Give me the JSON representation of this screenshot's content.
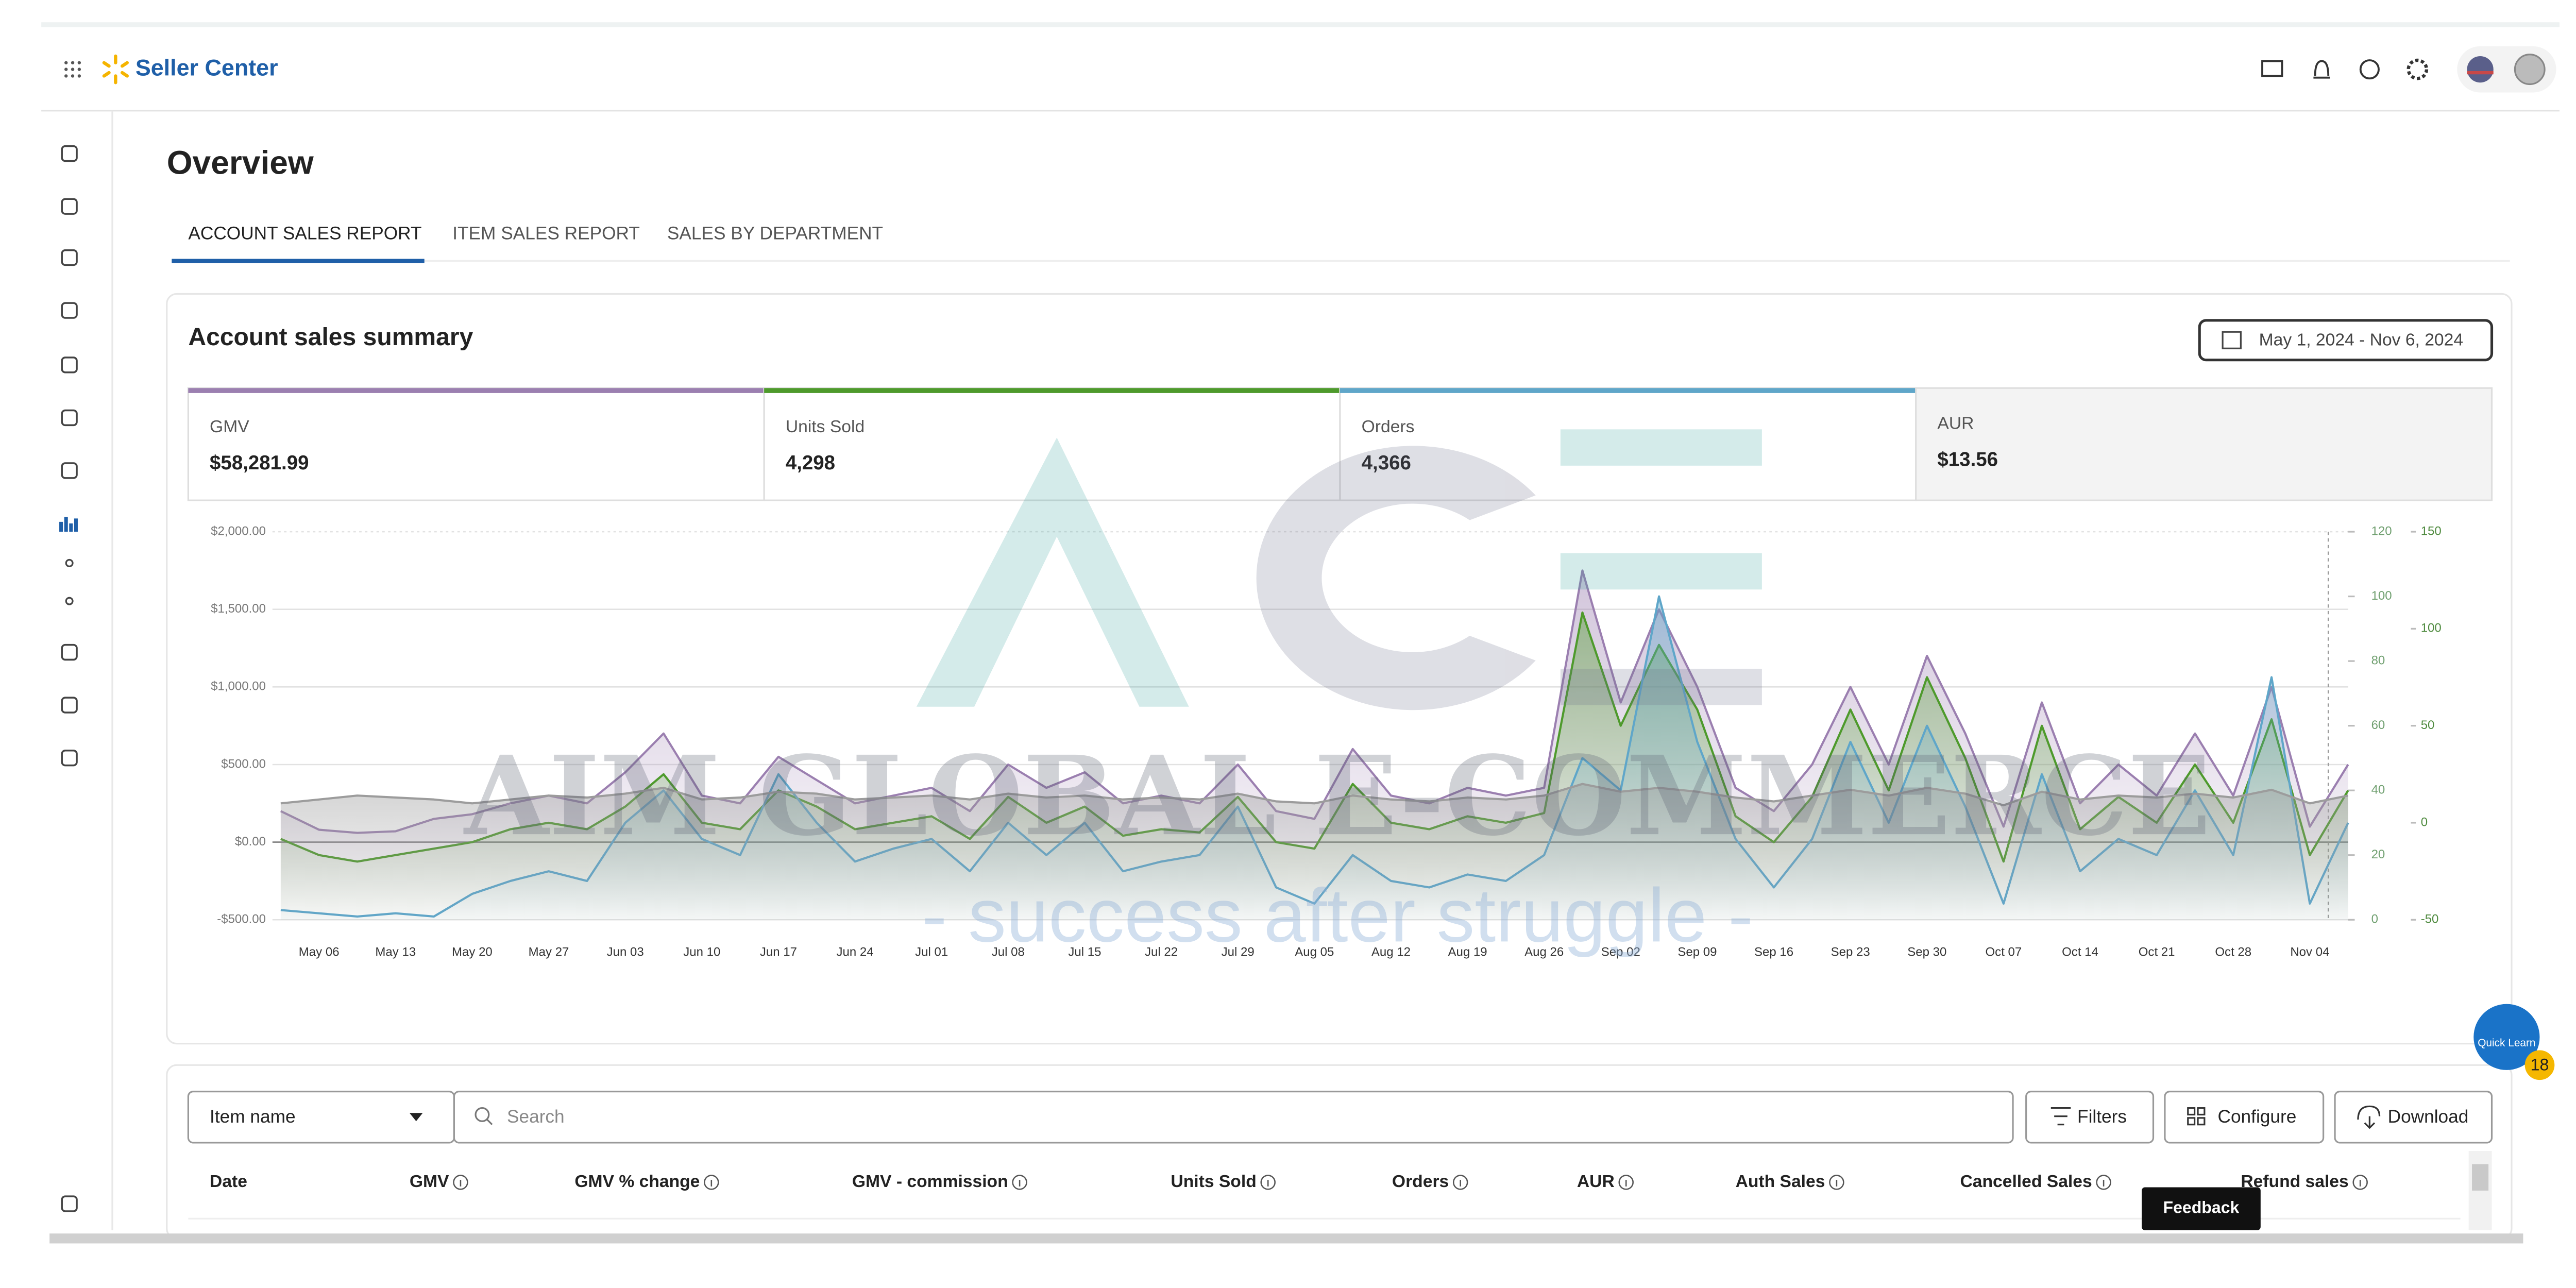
{
  "header": {
    "brand": "Seller Center"
  },
  "page": {
    "title": "Overview",
    "tabs": [
      "ACCOUNT SALES REPORT",
      "ITEM SALES REPORT",
      "SALES BY DEPARTMENT"
    ]
  },
  "summary": {
    "title": "Account sales summary",
    "date_range": "May 1, 2024 - Nov 6, 2024"
  },
  "chart_data": {
    "type": "line",
    "grid": true,
    "categories": [
      null,
      "May 06",
      null,
      "May 13",
      null,
      "May 20",
      null,
      "May 27",
      null,
      "Jun 03",
      null,
      "Jun 10",
      null,
      "Jun 17",
      null,
      "Jun 24",
      null,
      "Jul 01",
      null,
      "Jul 08",
      null,
      "Jul 15",
      null,
      "Jul 22",
      null,
      "Jul 29",
      null,
      "Aug 05",
      null,
      "Aug 12",
      null,
      "Aug 19",
      null,
      "Aug 26",
      null,
      "Sep 02",
      null,
      "Sep 09",
      null,
      "Sep 16",
      null,
      "Sep 23",
      null,
      "Sep 30",
      null,
      "Oct 07",
      null,
      "Oct 14",
      null,
      "Oct 21",
      null,
      "Oct 28",
      null,
      "Nov 04",
      null
    ],
    "ylim": [
      -500,
      2000
    ],
    "yticks": [
      {
        "value": -500,
        "label": "-$500.00"
      },
      {
        "value": 0,
        "label": "$0.00"
      },
      {
        "value": 500,
        "label": "$500.00"
      },
      {
        "value": 1000,
        "label": "$1,000.00"
      },
      {
        "value": 1500,
        "label": "$1,500.00"
      },
      {
        "value": 2000,
        "label": "$2,000.00"
      }
    ],
    "y2lim": [
      0,
      120
    ],
    "y2ticks": [
      0,
      20,
      40,
      60,
      80,
      100,
      120
    ],
    "y3lim": [
      -50,
      150
    ],
    "y3ticks": [
      -50,
      0,
      50,
      100,
      150
    ],
    "series": [
      {
        "name": "GMV",
        "summary_value": "$58,281.99",
        "selected": true,
        "color": "#9b7fb0",
        "axis": "y",
        "values": [
          200,
          80,
          60,
          70,
          150,
          180,
          250,
          300,
          250,
          450,
          700,
          300,
          250,
          550,
          400,
          250,
          300,
          350,
          200,
          500,
          350,
          450,
          250,
          300,
          250,
          500,
          200,
          150,
          600,
          300,
          250,
          350,
          300,
          350,
          1750,
          900,
          1500,
          1000,
          350,
          200,
          500,
          1000,
          500,
          1200,
          700,
          100,
          900,
          250,
          500,
          300,
          700,
          300,
          1000,
          100,
          500
        ]
      },
      {
        "name": "Units Sold",
        "summary_value": "4,298",
        "selected": true,
        "color": "#4e9a2c",
        "axis": "y2",
        "values": [
          25,
          20,
          18,
          20,
          22,
          24,
          28,
          30,
          28,
          35,
          45,
          30,
          28,
          40,
          35,
          28,
          30,
          32,
          25,
          38,
          30,
          35,
          26,
          28,
          27,
          38,
          24,
          22,
          42,
          30,
          28,
          32,
          30,
          33,
          95,
          60,
          85,
          65,
          32,
          24,
          38,
          65,
          40,
          75,
          50,
          18,
          60,
          28,
          38,
          30,
          48,
          30,
          62,
          20,
          40
        ]
      },
      {
        "name": "Orders",
        "summary_value": "4,366",
        "selected": true,
        "color": "#5fa6c9",
        "axis": "y2",
        "values": [
          3,
          2,
          1,
          2,
          1,
          8,
          12,
          15,
          12,
          30,
          40,
          25,
          20,
          45,
          30,
          18,
          22,
          25,
          15,
          30,
          20,
          30,
          15,
          18,
          20,
          35,
          10,
          5,
          20,
          12,
          10,
          14,
          12,
          20,
          50,
          40,
          100,
          55,
          25,
          10,
          25,
          55,
          30,
          60,
          35,
          5,
          45,
          15,
          25,
          20,
          40,
          20,
          75,
          5,
          30
        ]
      },
      {
        "name": "AUR",
        "summary_value": "$13.56",
        "selected": false,
        "color": "#9c9c9c",
        "axis": "y3",
        "values": [
          10,
          12,
          14,
          13,
          12,
          10,
          12,
          14,
          13,
          15,
          18,
          12,
          13,
          16,
          15,
          12,
          13,
          14,
          12,
          15,
          13,
          14,
          12,
          13,
          12,
          15,
          11,
          10,
          14,
          12,
          11,
          13,
          12,
          14,
          20,
          16,
          18,
          16,
          13,
          11,
          14,
          17,
          14,
          18,
          15,
          9,
          16,
          12,
          14,
          13,
          15,
          13,
          17,
          10,
          14
        ]
      }
    ]
  },
  "table": {
    "filter_field": "Item name",
    "search_placeholder": "Search",
    "buttons": [
      "Filters",
      "Configure",
      "Download"
    ],
    "headers": [
      "Date",
      "GMV",
      "GMV % change",
      "GMV - commission",
      "Units Sold",
      "Orders",
      "AUR",
      "Auth Sales",
      "Cancelled Sales",
      "Refund sales"
    ]
  },
  "overlays": {
    "feedback": "Feedback",
    "quick_learn": "Quick Learn",
    "quick_learn_badge": 18
  },
  "watermark": {
    "title": "AIM GLOBAL E-COMMERCE",
    "tagline": "- success after struggle -"
  }
}
